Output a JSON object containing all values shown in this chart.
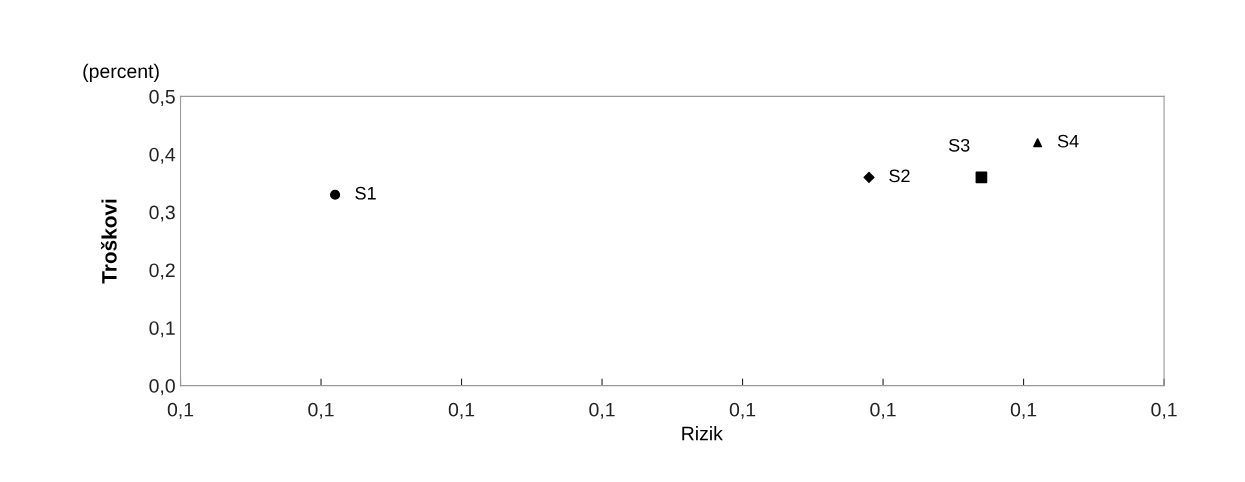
{
  "chart_data": {
    "type": "scatter",
    "xlabel": "Rizik",
    "ylabel": "Troškovi",
    "annotations": [
      "(percent)"
    ],
    "legend": false,
    "grid": false,
    "xlim": [
      0.096,
      0.103
    ],
    "xticks": [
      {
        "value": 0.096,
        "label": "0,1"
      },
      {
        "value": 0.097,
        "label": "0,1"
      },
      {
        "value": 0.098,
        "label": "0,1"
      },
      {
        "value": 0.099,
        "label": "0,1"
      },
      {
        "value": 0.1,
        "label": "0,1"
      },
      {
        "value": 0.101,
        "label": "0,1"
      },
      {
        "value": 0.102,
        "label": "0,1"
      },
      {
        "value": 0.103,
        "label": "0,1"
      }
    ],
    "ylim": [
      0,
      0.5
    ],
    "yticks": [
      {
        "value": 0,
        "label": "0,0"
      },
      {
        "value": 0.1,
        "label": "0,1"
      },
      {
        "value": 0.2,
        "label": "0,2"
      },
      {
        "value": 0.3,
        "label": "0,3"
      },
      {
        "value": 0.4,
        "label": "0,4"
      },
      {
        "value": 0.5,
        "label": "0,5"
      }
    ],
    "series": [
      {
        "name": "S1",
        "color": "#000000",
        "marker": "circle",
        "x": [
          0.0971
        ],
        "values": [
          0.33
        ]
      },
      {
        "name": "S2",
        "color": "#000000",
        "marker": "diamond",
        "x": [
          0.1009
        ],
        "values": [
          0.36
        ]
      },
      {
        "name": "S3",
        "color": "#000000",
        "marker": "square",
        "x": [
          0.1017
        ],
        "values": [
          0.36
        ]
      },
      {
        "name": "S4",
        "color": "#000000",
        "marker": "triangle",
        "x": [
          0.1021
        ],
        "values": [
          0.42
        ]
      }
    ]
  }
}
